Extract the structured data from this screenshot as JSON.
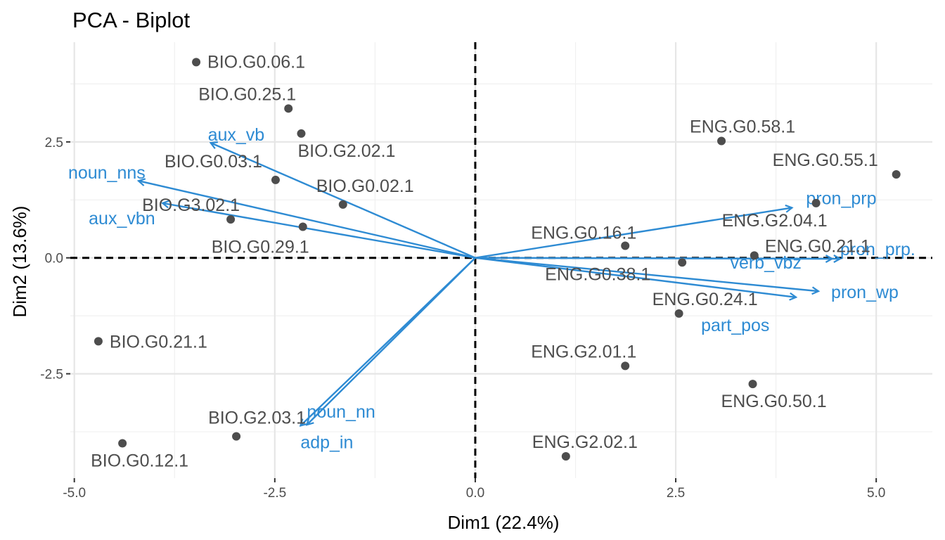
{
  "chart_data": {
    "type": "scatter",
    "title": "PCA - Biplot",
    "xlabel": "Dim1 (22.4%)",
    "ylabel": "Dim2 (13.6%)",
    "xlim": [
      -5.05,
      5.7
    ],
    "ylim": [
      -4.75,
      4.65
    ],
    "x_ticks": [
      -5.0,
      -2.5,
      0.0,
      2.5,
      5.0
    ],
    "x_tick_labels": [
      "-5.0",
      "-2.5",
      "0.0",
      "2.5",
      "5.0"
    ],
    "y_ticks": [
      -2.5,
      0.0,
      2.5
    ],
    "y_tick_labels": [
      "-2.5",
      "0.0",
      "2.5"
    ],
    "grid": true,
    "reference_lines": {
      "x": 0,
      "y": 0,
      "style": "dashed"
    },
    "colors": {
      "points": "#4d4d4d",
      "variables": "#2E8BD3"
    },
    "points": [
      {
        "label": "BIO.G0.06.1",
        "x": -3.48,
        "y": 4.22
      },
      {
        "label": "BIO.G0.25.1",
        "x": -2.33,
        "y": 3.22
      },
      {
        "label": "BIO.G2.02.1",
        "x": -2.17,
        "y": 2.68
      },
      {
        "label": "BIO.G0.03.1",
        "x": -2.49,
        "y": 1.68
      },
      {
        "label": "BIO.G0.02.1",
        "x": -1.65,
        "y": 1.15
      },
      {
        "label": "BIO.G3.02.1",
        "x": -3.05,
        "y": 0.83
      },
      {
        "label": "BIO.G0.29.1",
        "x": -2.15,
        "y": 0.67
      },
      {
        "label": "BIO.G0.21.1",
        "x": -4.7,
        "y": -1.8
      },
      {
        "label": "BIO.G2.03.1",
        "x": -2.98,
        "y": -3.85
      },
      {
        "label": "BIO.G0.12.1",
        "x": -4.4,
        "y": -4.0
      },
      {
        "label": "ENG.G0.58.1",
        "x": 3.07,
        "y": 2.52
      },
      {
        "label": "ENG.G0.55.1",
        "x": 5.25,
        "y": 1.8
      },
      {
        "label": "ENG.G2.04.1",
        "x": 4.25,
        "y": 1.18
      },
      {
        "label": "ENG.G0.16.1",
        "x": 1.87,
        "y": 0.26
      },
      {
        "label": "ENG.G0.21.1",
        "x": 3.48,
        "y": 0.05
      },
      {
        "label": "ENG.G0.38.1",
        "x": 2.58,
        "y": -0.1
      },
      {
        "label": "ENG.G0.24.1",
        "x": 2.54,
        "y": -1.2
      },
      {
        "label": "ENG.G2.01.1",
        "x": 1.87,
        "y": -2.33
      },
      {
        "label": "ENG.G0.50.1",
        "x": 3.46,
        "y": -2.72
      },
      {
        "label": "ENG.G2.02.1",
        "x": 1.13,
        "y": -4.28
      }
    ],
    "variables": [
      {
        "label": "aux_vb",
        "x": -3.3,
        "y": 2.48
      },
      {
        "label": "noun_nns",
        "x": -4.2,
        "y": 1.66
      },
      {
        "label": "aux_vbn",
        "x": -3.9,
        "y": 1.18
      },
      {
        "label": "pron_prp",
        "x": 3.95,
        "y": 1.08
      },
      {
        "label": "pron_prp.",
        "x": 4.55,
        "y": -0.02
      },
      {
        "label": "verb_vbz",
        "x": 4.45,
        "y": -0.02
      },
      {
        "label": "pron_wp",
        "x": 4.28,
        "y": -0.72
      },
      {
        "label": "part_pos",
        "x": 4.0,
        "y": -0.85
      },
      {
        "label": "noun_nn",
        "x": -2.1,
        "y": -3.6
      },
      {
        "label": "adp_in",
        "x": -2.18,
        "y": -3.62
      }
    ]
  }
}
